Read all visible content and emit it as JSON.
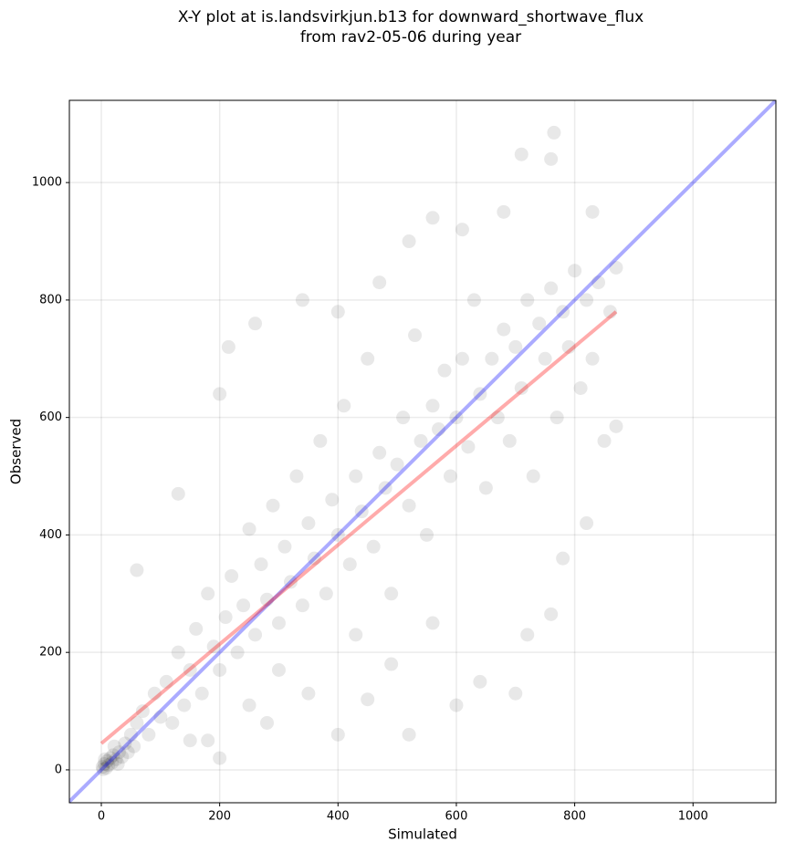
{
  "chart_data": {
    "type": "scatter",
    "title": "X-Y plot at is.landsvirkjun.b13 for downward_shortwave_flux\nfrom rav2-05-06 during year",
    "x_label": "Simulated",
    "y_label": "Observed",
    "xlim": [
      -54,
      1140
    ],
    "ylim": [
      -56,
      1140
    ],
    "xticks": [
      0,
      200,
      400,
      600,
      800,
      1000
    ],
    "yticks": [
      0,
      200,
      400,
      600,
      800,
      1000
    ],
    "grid": true,
    "series": [
      {
        "style": "points",
        "color": "#000000",
        "x": [
          2,
          5,
          8,
          10,
          12,
          15,
          18,
          20,
          25,
          30,
          35,
          40,
          3,
          6,
          22,
          28,
          45,
          50,
          55,
          60,
          70,
          80,
          90,
          100,
          110,
          120,
          130,
          140,
          150,
          160,
          170,
          180,
          190,
          200,
          210,
          220,
          230,
          240,
          250,
          260,
          270,
          280,
          290,
          300,
          310,
          320,
          330,
          340,
          350,
          360,
          370,
          380,
          390,
          400,
          410,
          420,
          430,
          440,
          450,
          460,
          470,
          480,
          490,
          500,
          510,
          520,
          530,
          540,
          550,
          560,
          570,
          580,
          590,
          600,
          610,
          620,
          630,
          640,
          650,
          660,
          670,
          680,
          690,
          700,
          710,
          720,
          730,
          740,
          750,
          760,
          770,
          780,
          790,
          800,
          810,
          820,
          830,
          840,
          850,
          860,
          130,
          200,
          215,
          260,
          340,
          400,
          470,
          520,
          560,
          610,
          680,
          710,
          760,
          765,
          830,
          350,
          400,
          450,
          520,
          600,
          640,
          700,
          720,
          760,
          280,
          200,
          150,
          60,
          870,
          870,
          820,
          780,
          490,
          560,
          430,
          300,
          250,
          180
        ],
        "values": [
          5,
          10,
          3,
          15,
          8,
          20,
          12,
          25,
          18,
          30,
          22,
          45,
          1,
          18,
          40,
          10,
          30,
          60,
          40,
          80,
          100,
          60,
          130,
          90,
          150,
          80,
          200,
          110,
          170,
          240,
          130,
          300,
          210,
          170,
          260,
          330,
          200,
          280,
          410,
          230,
          350,
          290,
          450,
          250,
          380,
          320,
          500,
          280,
          420,
          360,
          560,
          300,
          460,
          400,
          620,
          350,
          500,
          440,
          700,
          380,
          540,
          480,
          300,
          520,
          600,
          450,
          740,
          560,
          400,
          620,
          580,
          680,
          500,
          600,
          700,
          550,
          800,
          640,
          480,
          700,
          600,
          750,
          560,
          720,
          650,
          800,
          500,
          760,
          700,
          820,
          600,
          780,
          720,
          850,
          650,
          800,
          700,
          830,
          560,
          780,
          470,
          640,
          720,
          760,
          800,
          780,
          830,
          900,
          940,
          920,
          950,
          1048,
          1040,
          1085,
          950,
          130,
          60,
          120,
          60,
          110,
          150,
          130,
          230,
          265,
          80,
          20,
          50,
          340,
          585,
          855,
          420,
          360,
          180,
          250,
          230,
          170,
          110,
          50
        ]
      },
      {
        "style": "line",
        "color": "#0000ff",
        "x": [
          -54,
          1140
        ],
        "values": [
          -54,
          1140
        ]
      },
      {
        "style": "line",
        "color": "#ff0000",
        "x": [
          0,
          870
        ],
        "values": [
          45,
          780
        ]
      }
    ]
  }
}
